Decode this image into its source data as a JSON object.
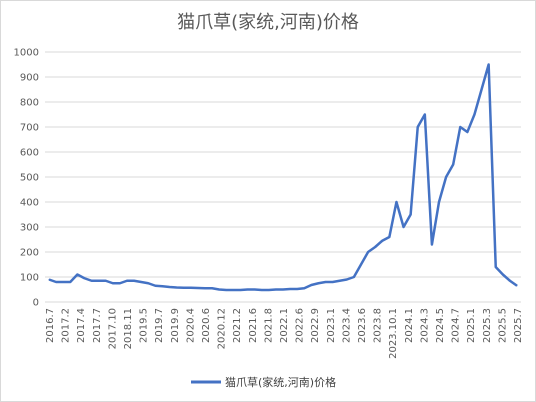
{
  "chart_data": {
    "type": "line",
    "title": "猫爪草(家统,河南)价格",
    "xlabel": "",
    "ylabel": "",
    "ylim": [
      0,
      1000
    ],
    "y_ticks": [
      0,
      100,
      200,
      300,
      400,
      500,
      600,
      700,
      800,
      900,
      1000
    ],
    "grid": "horizontal",
    "legend_position": "bottom",
    "x_tick_labels": [
      "2016.7",
      "2017.2",
      "2017.4",
      "2017.7",
      "2017.10",
      "2018.11",
      "2019.5",
      "2019.7",
      "2019.9",
      "2020.4",
      "2020.6",
      "2020.12",
      "2021.2",
      "2021.6",
      "2021.8",
      "2022.1",
      "2022.6",
      "2022.9",
      "2023.1",
      "2023.4",
      "2023.6",
      "2023.8",
      "2023.10.1",
      "2024.1",
      "2024.3",
      "2024.5",
      "2024.7",
      "2025.1",
      "2025.3",
      "2025.5",
      "2025.7"
    ],
    "series": [
      {
        "name": "猫爪草(家统,河南)价格",
        "color": "#4472C4",
        "values": [
          90,
          80,
          80,
          80,
          110,
          95,
          85,
          85,
          85,
          75,
          75,
          85,
          85,
          80,
          75,
          65,
          63,
          60,
          58,
          57,
          57,
          56,
          55,
          55,
          50,
          48,
          48,
          48,
          50,
          50,
          48,
          48,
          50,
          50,
          52,
          52,
          55,
          68,
          75,
          80,
          80,
          85,
          90,
          100,
          150,
          200,
          220,
          245,
          260,
          400,
          300,
          350,
          700,
          750,
          230,
          400,
          500,
          550,
          700,
          680,
          750,
          850,
          950,
          140,
          110,
          85,
          65
        ]
      }
    ]
  }
}
